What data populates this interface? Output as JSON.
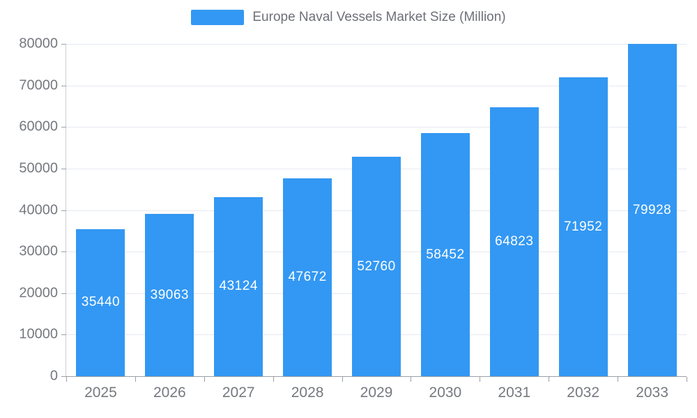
{
  "colors": {
    "bar": "#3398f3",
    "grid": "#e5e9f0",
    "axis": "#9aa0a6",
    "tick_text": "#75797f",
    "legend_text": "#6e7079",
    "value_text": "#ffffff"
  },
  "legend": {
    "label": "Europe Naval Vessels Market Size (Million)"
  },
  "chart_data": {
    "type": "bar",
    "title": "Europe Naval Vessels Market Size (Million)",
    "xlabel": "",
    "ylabel": "",
    "categories": [
      "2025",
      "2026",
      "2027",
      "2028",
      "2029",
      "2030",
      "2031",
      "2032",
      "2033"
    ],
    "values": [
      35440,
      39063,
      43124,
      47672,
      52760,
      58452,
      64823,
      71952,
      79928
    ],
    "value_labels": [
      "35440",
      "39063",
      "43124",
      "47672",
      "52760",
      "58452",
      "64823",
      "71952",
      "79928"
    ],
    "ylim": [
      0,
      80000
    ],
    "ytick_step": 10000,
    "ytick_labels": [
      "0",
      "10000",
      "20000",
      "30000",
      "40000",
      "50000",
      "60000",
      "70000",
      "80000"
    ],
    "grid": true,
    "legend_position": "top-center",
    "bar_color": "#3398f3"
  }
}
